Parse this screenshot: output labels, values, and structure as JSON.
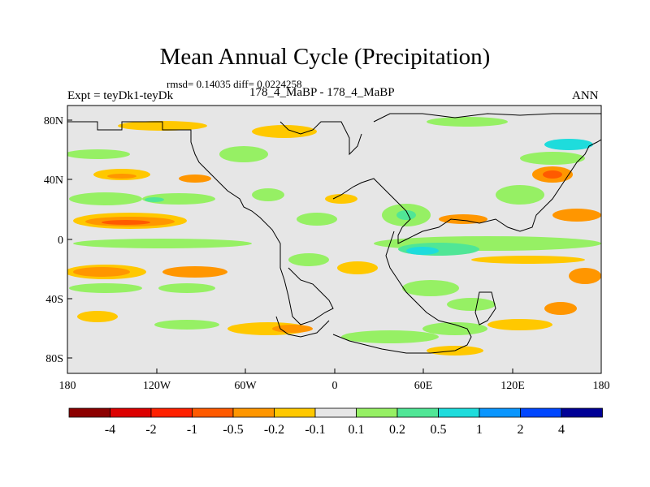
{
  "title": "Mean Annual Cycle (Precipitation)",
  "stats": "rmsd= 0.14035 diff= 0.0224258",
  "expt": "Expt = teyDk1-teyDk",
  "period": "178_4_MaBP - 178_4_MaBP",
  "season": "ANN",
  "map": {
    "lat_labels": [
      "80N",
      "40N",
      "0",
      "40S",
      "80S"
    ],
    "lon_labels": [
      "180",
      "120W",
      "60W",
      "0",
      "60E",
      "120E",
      "180"
    ],
    "background_color": "#e6e6e6"
  },
  "colorbar": {
    "labels": [
      "-4",
      "-2",
      "-1",
      "-0.5",
      "-0.2",
      "-0.1",
      "0.1",
      "0.2",
      "0.5",
      "1",
      "2",
      "4"
    ],
    "colors": [
      "#8c0000",
      "#dc0000",
      "#ff2000",
      "#ff5a00",
      "#ff9600",
      "#ffc800",
      "#e6e6e6",
      "#96f064",
      "#50e696",
      "#1edcdc",
      "#0a96ff",
      "#0046ff",
      "#000096"
    ]
  },
  "chart_data": {
    "type": "heatmap",
    "title": "Mean Annual Cycle (Precipitation)",
    "subtitle": "rmsd= 0.14035 diff= 0.0224258",
    "variable": "Precipitation difference",
    "x_range": [
      -180,
      180
    ],
    "y_range": [
      -90,
      90
    ],
    "levels": [
      -4,
      -2,
      -1,
      -0.5,
      -0.2,
      -0.1,
      0.1,
      0.2,
      0.5,
      1,
      2,
      4
    ]
  }
}
